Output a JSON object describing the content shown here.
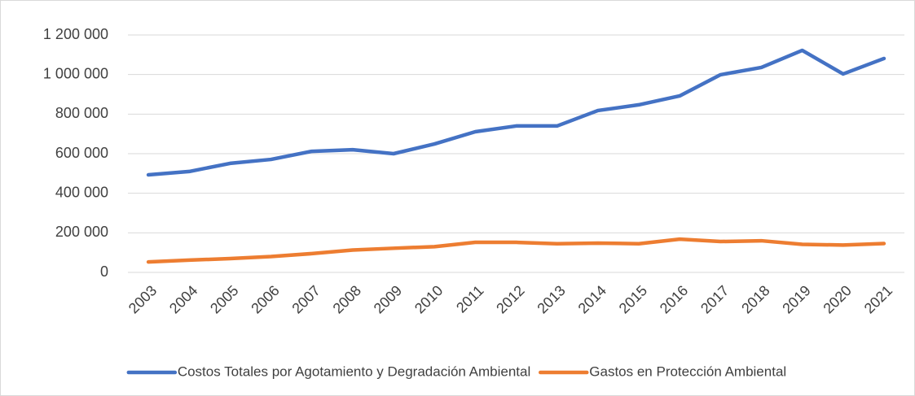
{
  "chart_data": {
    "type": "line",
    "categories": [
      "2003",
      "2004",
      "2005",
      "2006",
      "2007",
      "2008",
      "2009",
      "2010",
      "2011",
      "2012",
      "2013",
      "2014",
      "2015",
      "2016",
      "2017",
      "2018",
      "2019",
      "2020",
      "2021"
    ],
    "series": [
      {
        "name": "Costos Totales por Agotamiento y Degradación Ambiental",
        "color": "#4472c4",
        "values": [
          493000,
          510000,
          551000,
          571000,
          612000,
          620000,
          600000,
          649000,
          711000,
          740000,
          740000,
          818000,
          847000,
          892000,
          999000,
          1036000,
          1122000,
          1003000,
          1081000
        ]
      },
      {
        "name": "Gastos en Protección Ambiental",
        "color": "#ed7d31",
        "values": [
          53000,
          62000,
          70000,
          80000,
          95000,
          113000,
          122000,
          130000,
          152000,
          152000,
          145000,
          148000,
          145000,
          168000,
          156000,
          160000,
          142000,
          138000,
          146000
        ]
      }
    ],
    "ylim": [
      0,
      1200000
    ],
    "yticks": [
      0,
      {
        "value": 200000,
        "label": "200 000"
      },
      {
        "value": 400000,
        "label": "400 000"
      },
      {
        "value": 600000,
        "label": "600 000"
      },
      {
        "value": 800000,
        "label": "800 000"
      },
      {
        "value": 1000000,
        "label": "1 000 000"
      },
      {
        "value": 1200000,
        "label": "1 200 000"
      }
    ],
    "grid": true,
    "legend": "bottom"
  }
}
